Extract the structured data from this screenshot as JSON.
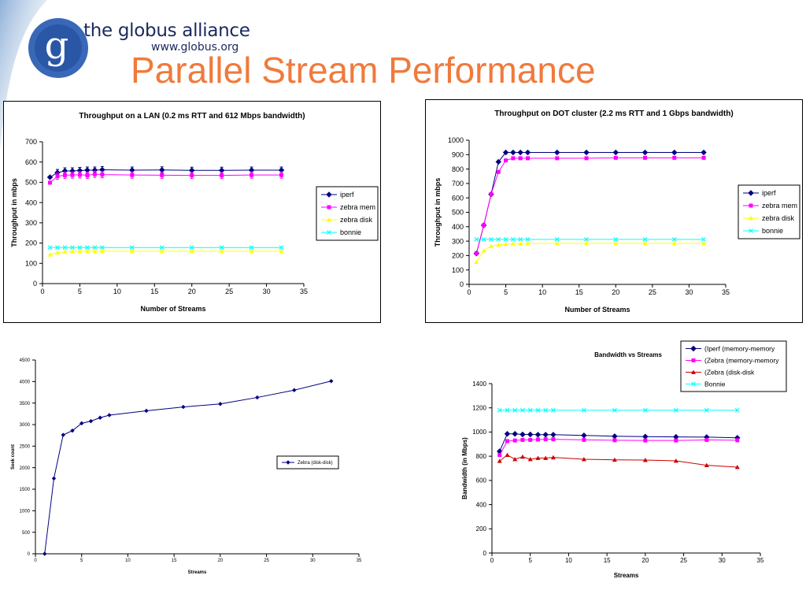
{
  "header": {
    "brand_name": "the globus alliance",
    "brand_url": "www.globus.org",
    "logo_icon": "globus-g-logo-icon",
    "title": "Parallel Stream Performance",
    "title_color": "#f07a3c",
    "brand_color": "#1a2a5c"
  },
  "chart_data": [
    {
      "type": "line",
      "title": "Throughput on a LAN (0.2 ms RTT and 612 Mbps bandwidth)",
      "xlabel": "Number of Streams",
      "ylabel": "Throughput in mbps",
      "xlim": [
        0,
        35
      ],
      "ylim": [
        0,
        700
      ],
      "xticks": [
        0,
        5,
        10,
        15,
        20,
        25,
        30,
        35
      ],
      "yticks": [
        0,
        100,
        200,
        300,
        400,
        500,
        600,
        700
      ],
      "grid": false,
      "legend": "right",
      "error_bars": true,
      "series": [
        {
          "name": "iperf",
          "color": "#000080",
          "marker": "diamond",
          "x": [
            1,
            2,
            3,
            4,
            5,
            6,
            7,
            8,
            12,
            16,
            20,
            24,
            28,
            32
          ],
          "y": [
            525,
            548,
            556,
            556,
            558,
            560,
            560,
            562,
            560,
            561,
            559,
            559,
            560,
            560
          ]
        },
        {
          "name": "zebra mem",
          "color": "#ff00ff",
          "marker": "square",
          "x": [
            1,
            2,
            3,
            4,
            5,
            6,
            7,
            8,
            12,
            16,
            20,
            24,
            28,
            32
          ],
          "y": [
            498,
            530,
            535,
            536,
            537,
            535,
            540,
            538,
            536,
            535,
            534,
            534,
            536,
            536
          ]
        },
        {
          "name": "zebra disk",
          "color": "#ffff00",
          "marker": "triangle",
          "x": [
            1,
            2,
            3,
            4,
            5,
            6,
            7,
            8,
            12,
            16,
            20,
            24,
            28,
            32
          ],
          "y": [
            143,
            153,
            157,
            159,
            160,
            160,
            160,
            160,
            160,
            160,
            160,
            160,
            160,
            160
          ]
        },
        {
          "name": "bonnie",
          "color": "#00ffff",
          "marker": "x",
          "x": [
            1,
            2,
            3,
            4,
            5,
            6,
            7,
            8,
            12,
            16,
            20,
            24,
            28,
            32
          ],
          "y": [
            178,
            178,
            178,
            178,
            178,
            178,
            178,
            178,
            178,
            178,
            178,
            178,
            178,
            178
          ]
        }
      ]
    },
    {
      "type": "line",
      "title": "Throughput on DOT cluster (2.2 ms RTT and 1 Gbps bandwidth)",
      "xlabel": "Number of Streams",
      "ylabel": "Throughput in mbps",
      "xlim": [
        0,
        35
      ],
      "ylim": [
        0,
        1000
      ],
      "xticks": [
        0,
        5,
        10,
        15,
        20,
        25,
        30,
        35
      ],
      "yticks": [
        0,
        100,
        200,
        300,
        400,
        500,
        600,
        700,
        800,
        900,
        1000
      ],
      "grid": false,
      "legend": "right",
      "series": [
        {
          "name": "iperf",
          "color": "#000080",
          "marker": "diamond",
          "x": [
            1,
            2,
            3,
            4,
            5,
            6,
            7,
            8,
            12,
            16,
            20,
            24,
            28,
            32
          ],
          "y": [
            215,
            410,
            625,
            850,
            915,
            915,
            915,
            915,
            915,
            915,
            915,
            915,
            915,
            915
          ]
        },
        {
          "name": "zebra mem",
          "color": "#ff00ff",
          "marker": "square",
          "x": [
            1,
            2,
            3,
            4,
            5,
            6,
            7,
            8,
            12,
            16,
            20,
            24,
            28,
            32
          ],
          "y": [
            215,
            410,
            625,
            780,
            860,
            875,
            875,
            875,
            875,
            875,
            878,
            878,
            878,
            878
          ]
        },
        {
          "name": "zebra disk",
          "color": "#ffff00",
          "marker": "triangle",
          "x": [
            1,
            2,
            3,
            4,
            5,
            6,
            7,
            8,
            12,
            16,
            20,
            24,
            28,
            32
          ],
          "y": [
            155,
            235,
            265,
            275,
            280,
            282,
            283,
            284,
            285,
            285,
            285,
            285,
            285,
            285
          ]
        },
        {
          "name": "bonnie",
          "color": "#00ffff",
          "marker": "x",
          "x": [
            1,
            2,
            3,
            4,
            5,
            6,
            7,
            8,
            12,
            16,
            20,
            24,
            28,
            32
          ],
          "y": [
            312,
            312,
            312,
            312,
            312,
            312,
            312,
            312,
            312,
            312,
            312,
            312,
            312,
            312
          ]
        }
      ]
    },
    {
      "type": "line",
      "title": "",
      "xlabel": "Streams",
      "ylabel": "Seek count",
      "xlim": [
        0,
        35
      ],
      "ylim": [
        0,
        4500
      ],
      "xticks": [
        0,
        5,
        10,
        15,
        20,
        25,
        30,
        35
      ],
      "yticks": [
        0,
        500,
        1000,
        1500,
        2000,
        2500,
        3000,
        3500,
        4000,
        4500
      ],
      "grid": false,
      "legend": "right",
      "series": [
        {
          "name": "Zebra (disk-disk)",
          "color": "#000080",
          "marker": "diamond",
          "x": [
            1,
            2,
            3,
            4,
            5,
            6,
            7,
            8,
            12,
            16,
            20,
            24,
            28,
            32
          ],
          "y": [
            0,
            1750,
            2760,
            2860,
            3030,
            3080,
            3160,
            3220,
            3320,
            3410,
            3480,
            3630,
            3800,
            4010
          ]
        }
      ]
    },
    {
      "type": "line",
      "title": "Bandwidth vs Streams",
      "xlabel": "Streams",
      "ylabel": "Bandwidth (in Mbps)",
      "xlim": [
        0,
        35
      ],
      "ylim": [
        0,
        1400
      ],
      "xticks": [
        0,
        5,
        10,
        15,
        20,
        25,
        30,
        35
      ],
      "yticks": [
        0,
        200,
        400,
        600,
        800,
        1000,
        1200,
        1400
      ],
      "grid": false,
      "legend": "top-right",
      "series": [
        {
          "name": "(Iperf (memory-memory",
          "color": "#000080",
          "marker": "diamond",
          "x": [
            1,
            2,
            3,
            4,
            5,
            6,
            7,
            8,
            12,
            16,
            20,
            24,
            28,
            32
          ],
          "y": [
            840,
            985,
            985,
            980,
            980,
            978,
            978,
            978,
            972,
            965,
            962,
            960,
            958,
            952
          ]
        },
        {
          "name": "(Zebra (memory-memory",
          "color": "#ff00ff",
          "marker": "square",
          "x": [
            1,
            2,
            3,
            4,
            5,
            6,
            7,
            8,
            12,
            16,
            20,
            24,
            28,
            32
          ],
          "y": [
            810,
            925,
            930,
            935,
            935,
            938,
            940,
            940,
            935,
            932,
            930,
            930,
            935,
            932
          ]
        },
        {
          "name": "(Zebra (disk-disk",
          "color": "#cc0000",
          "marker": "triangle",
          "x": [
            1,
            2,
            3,
            4,
            5,
            6,
            7,
            8,
            12,
            16,
            20,
            24,
            28,
            32
          ],
          "y": [
            760,
            810,
            775,
            795,
            775,
            785,
            785,
            790,
            775,
            770,
            768,
            762,
            725,
            710
          ]
        },
        {
          "name": "Bonnie",
          "color": "#00ffff",
          "marker": "x",
          "x": [
            1,
            2,
            3,
            4,
            5,
            6,
            7,
            8,
            12,
            16,
            20,
            24,
            28,
            32
          ],
          "y": [
            1180,
            1180,
            1180,
            1180,
            1180,
            1180,
            1180,
            1180,
            1180,
            1180,
            1180,
            1180,
            1180,
            1180
          ]
        }
      ]
    }
  ]
}
